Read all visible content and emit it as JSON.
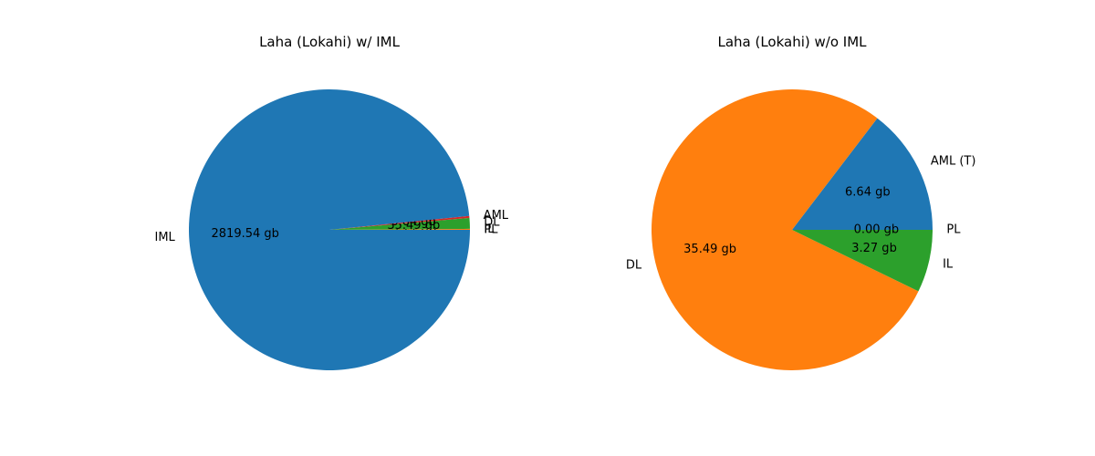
{
  "chart_data": [
    {
      "type": "pie",
      "title": "Laha (Lokahi) w/ IML",
      "slices": [
        {
          "label": "PL",
          "value": 0.0,
          "value_label": "0.00 gb",
          "color": "#1f77b4"
        },
        {
          "label": "IL",
          "value": 3.27,
          "value_label": "3.27 gb",
          "color": "#ff7f0e"
        },
        {
          "label": "DL",
          "value": 35.49,
          "value_label": "35.49 gb",
          "color": "#2ca02c"
        },
        {
          "label": "AML",
          "value": 6.64,
          "value_label": "6.64 gb",
          "color": "#d62728"
        },
        {
          "label": "IML",
          "value": 2819.54,
          "value_label": "2819.54 gb",
          "color": "#1f77b4"
        }
      ]
    },
    {
      "type": "pie",
      "title": "Laha (Lokahi) w/o IML",
      "slices": [
        {
          "label": "AML (T)",
          "value": 6.64,
          "value_label": "6.64 gb",
          "color": "#1f77b4"
        },
        {
          "label": "DL",
          "value": 35.49,
          "value_label": "35.49 gb",
          "color": "#ff7f0e"
        },
        {
          "label": "IL",
          "value": 3.27,
          "value_label": "3.27 gb",
          "color": "#2ca02c"
        },
        {
          "label": "PL",
          "value": 0.0,
          "value_label": "0.00 gb",
          "color": "#d62728"
        }
      ]
    }
  ]
}
